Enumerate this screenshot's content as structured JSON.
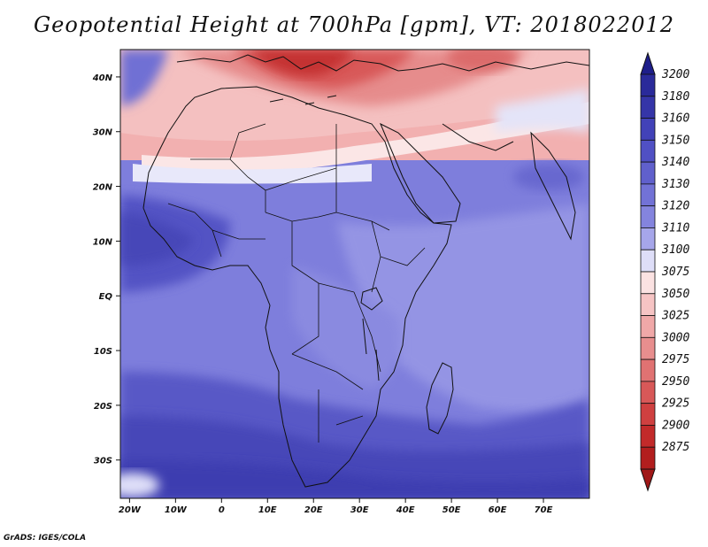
{
  "title": "Geopotential Height at 700hPa [gpm], VT: 2018022012",
  "footer": "GrADS: IGES/COLA",
  "map": {
    "lon_range": [
      -22,
      80
    ],
    "lat_range": [
      -37,
      45
    ],
    "lon_ticks": [
      {
        "value": -20,
        "label": "20W"
      },
      {
        "value": -10,
        "label": "10W"
      },
      {
        "value": 0,
        "label": "0"
      },
      {
        "value": 10,
        "label": "10E"
      },
      {
        "value": 20,
        "label": "20E"
      },
      {
        "value": 30,
        "label": "30E"
      },
      {
        "value": 40,
        "label": "40E"
      },
      {
        "value": 50,
        "label": "50E"
      },
      {
        "value": 60,
        "label": "60E"
      },
      {
        "value": 70,
        "label": "70E"
      }
    ],
    "lat_ticks": [
      {
        "value": 40,
        "label": "40N"
      },
      {
        "value": 30,
        "label": "30N"
      },
      {
        "value": 20,
        "label": "20N"
      },
      {
        "value": 10,
        "label": "10N"
      },
      {
        "value": 0,
        "label": "EQ"
      },
      {
        "value": -10,
        "label": "10S"
      },
      {
        "value": -20,
        "label": "20S"
      },
      {
        "value": -30,
        "label": "30S"
      }
    ]
  },
  "colorbar": {
    "levels": [
      {
        "label": "3200",
        "color": "#2a2a9a"
      },
      {
        "label": "3180",
        "color": "#3535a8"
      },
      {
        "label": "3160",
        "color": "#4242b8"
      },
      {
        "label": "3150",
        "color": "#5050c4"
      },
      {
        "label": "3140",
        "color": "#6060cc"
      },
      {
        "label": "3130",
        "color": "#7272d6"
      },
      {
        "label": "3120",
        "color": "#8484de"
      },
      {
        "label": "3110",
        "color": "#a6a6ea"
      },
      {
        "label": "3100",
        "color": "#dedef8"
      },
      {
        "label": "3075",
        "color": "#fbe2e2"
      },
      {
        "label": "3050",
        "color": "#f6c4c4"
      },
      {
        "label": "3025",
        "color": "#f0a8a8"
      },
      {
        "label": "3000",
        "color": "#e88e8e"
      },
      {
        "label": "2975",
        "color": "#e07272"
      },
      {
        "label": "2950",
        "color": "#d85858"
      },
      {
        "label": "2925",
        "color": "#cf4040"
      },
      {
        "label": "2900",
        "color": "#c22a2a"
      },
      {
        "label": "2875",
        "color": "#b21e1e"
      }
    ],
    "top_arrow_color": "#1e1e8a",
    "bottom_arrow_color": "#a01818"
  }
}
